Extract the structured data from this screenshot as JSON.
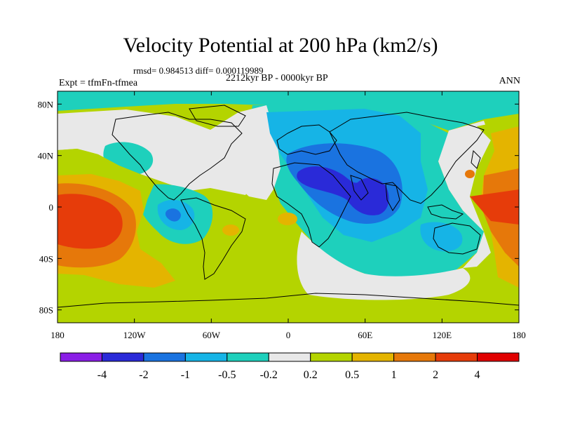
{
  "title": "Velocity Potential at 200 hPa (km2/s)",
  "stats": "rmsd= 0.984513 diff= 0.000119989",
  "experiment": "Expt = tfmFn-tfmea",
  "period": "2212kyr BP - 0000kyr BP",
  "season": "ANN",
  "axes": {
    "x_ticks": [
      {
        "value": -180,
        "label": "180"
      },
      {
        "value": -120,
        "label": "120W"
      },
      {
        "value": -60,
        "label": "60W"
      },
      {
        "value": 0,
        "label": "0"
      },
      {
        "value": 60,
        "label": "60E"
      },
      {
        "value": 120,
        "label": "120E"
      },
      {
        "value": 180,
        "label": "180"
      }
    ],
    "y_ticks": [
      {
        "value": 80,
        "label": "80N"
      },
      {
        "value": 40,
        "label": "40N"
      },
      {
        "value": 0,
        "label": "0"
      },
      {
        "value": -40,
        "label": "40S"
      },
      {
        "value": -80,
        "label": "80S"
      }
    ]
  },
  "colorbar": {
    "colors": [
      "#8a1ee6",
      "#2a2ad8",
      "#1a73e0",
      "#16b4e6",
      "#1ed0bc",
      "#e8e8e8",
      "#b4d400",
      "#e4b400",
      "#e6780a",
      "#e63c0a",
      "#e00000"
    ],
    "labels": [
      "-4",
      "-2",
      "-1",
      "-0.5",
      "-0.2",
      "0.2",
      "0.5",
      "1",
      "2",
      "4"
    ]
  }
}
